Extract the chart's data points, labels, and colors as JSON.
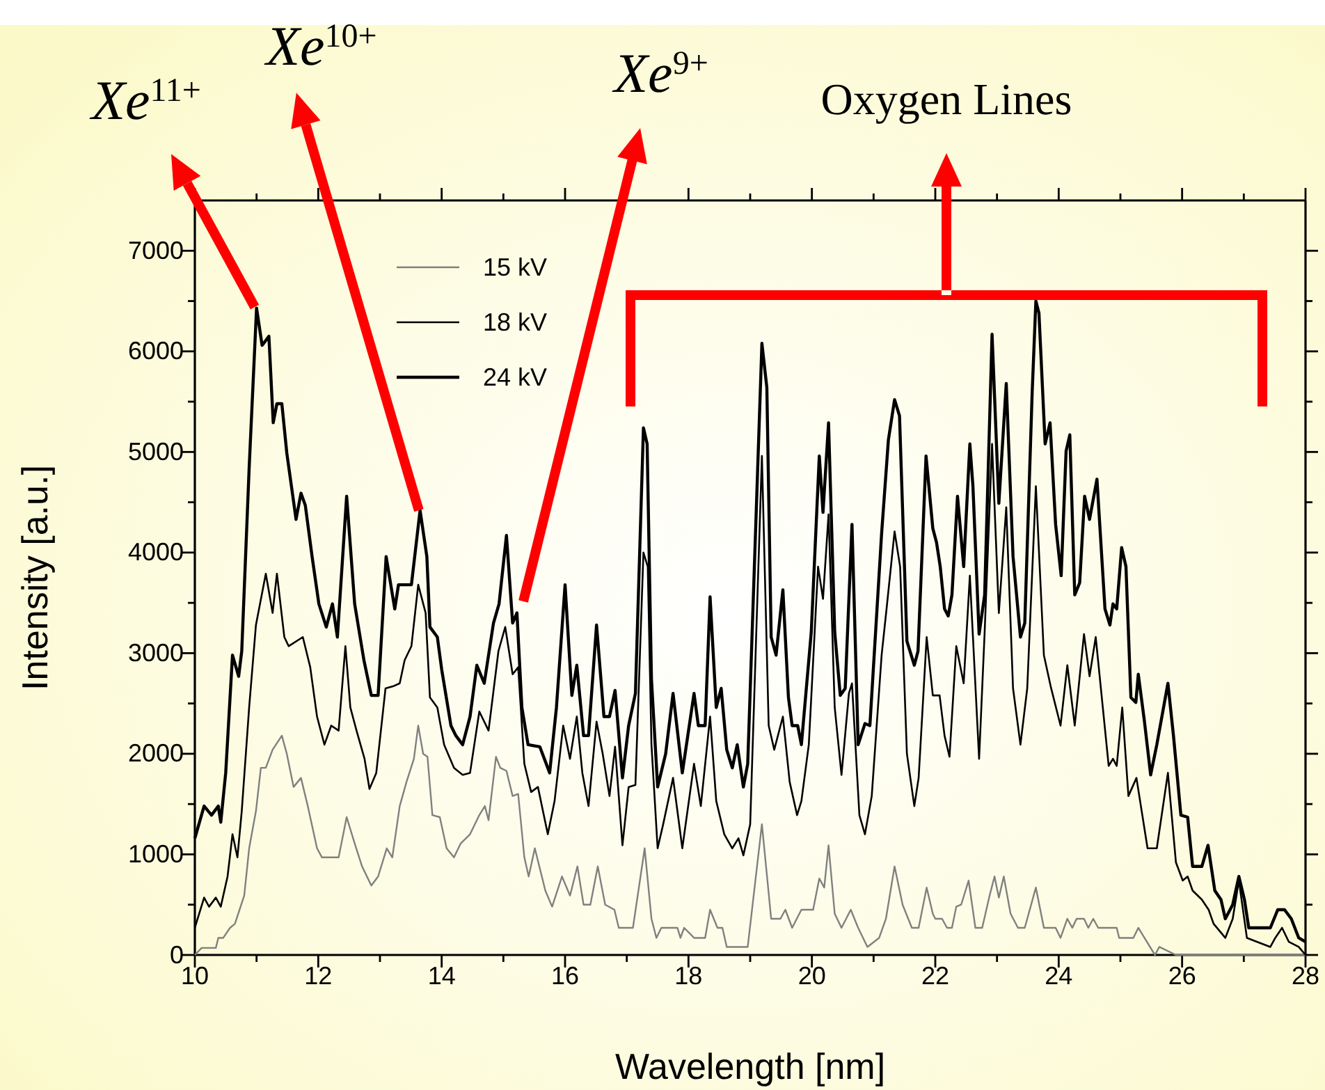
{
  "chart_data": {
    "type": "line",
    "xlabel": "Wavelength [nm]",
    "ylabel": "Intensity [a.u.]",
    "xlim": [
      10,
      28
    ],
    "ylim": [
      0,
      7500
    ],
    "xticks": [
      10,
      {
        "value": 11,
        "label": null
      },
      12,
      {
        "value": 13,
        "label": null
      },
      14,
      {
        "value": 15,
        "label": null
      },
      16,
      {
        "value": 17,
        "label": null
      },
      18,
      {
        "value": 19,
        "label": null
      },
      20,
      {
        "value": 21,
        "label": null
      },
      22,
      {
        "value": 23,
        "label": null
      },
      24,
      {
        "value": 25,
        "label": null
      },
      26,
      {
        "value": 27,
        "label": null
      },
      28
    ],
    "yticks": [
      0,
      {
        "value": 500,
        "label": null
      },
      1000,
      {
        "value": 1500,
        "label": null
      },
      2000,
      {
        "value": 2500,
        "label": null
      },
      3000,
      {
        "value": 3500,
        "label": null
      },
      4000,
      {
        "value": 4500,
        "label": null
      },
      5000,
      {
        "value": 5500,
        "label": null
      },
      6000,
      {
        "value": 6500,
        "label": null
      },
      7000
    ],
    "grid": false,
    "legend": "top left",
    "marker": "none",
    "line_style": "solid",
    "annotations": [
      {
        "text": "Xe$^{11+}$",
        "x": 10.97,
        "y": 6440
      },
      {
        "text": "Xe$^{10+}$",
        "x": 13.63,
        "y": 4420
      },
      "Xe$^{9+}$",
      "Oxygen Lines"
    ],
    "series": [
      {
        "name": "15 kV",
        "color": "#808080",
        "x": [
          10,
          10.11,
          10.34,
          10.38,
          10.46,
          10.57,
          10.65,
          10.8,
          10.88,
          10.99,
          11.07,
          11.15,
          11.26,
          11.41,
          11.49,
          11.6,
          11.72,
          11.83,
          11.98,
          12.06,
          12.33,
          12.46,
          12.59,
          12.71,
          12.86,
          12.97,
          13.11,
          13.2,
          13.32,
          13.43,
          13.55,
          13.62,
          13.7,
          13.77,
          13.85,
          13.97,
          14.08,
          14.2,
          14.31,
          14.46,
          14.61,
          14.7,
          14.76,
          14.88,
          14.95,
          15.05,
          15.15,
          15.24,
          15.34,
          15.41,
          15.51,
          15.68,
          15.79,
          15.95,
          16.08,
          16.2,
          16.3,
          16.41,
          16.53,
          16.65,
          16.8,
          16.87,
          17.1,
          17.29,
          17.4,
          17.48,
          17.56,
          17.82,
          17.87,
          17.93,
          18.09,
          18.27,
          18.35,
          18.47,
          18.55,
          18.62,
          18.96,
          19.19,
          19.34,
          19.49,
          19.57,
          19.68,
          19.83,
          20.02,
          20.12,
          20.2,
          20.27,
          20.37,
          20.48,
          20.63,
          20.75,
          20.9,
          21.09,
          21.2,
          21.34,
          21.47,
          21.62,
          21.73,
          21.86,
          21.96,
          22,
          22.11,
          22.19,
          22.27,
          22.34,
          22.42,
          22.54,
          22.65,
          22.76,
          22.88,
          22.96,
          23.03,
          23.11,
          23.22,
          23.34,
          23.45,
          23.63,
          23.76,
          23.95,
          24.03,
          24.14,
          24.22,
          24.29,
          24.41,
          24.48,
          24.56,
          24.64,
          24.94,
          24.98,
          25.21,
          25.29,
          25.39,
          25.56,
          25.63,
          25.9,
          28
        ],
        "values": [
          0,
          70,
          70,
          170,
          170,
          270,
          310,
          590,
          1060,
          1430,
          1860,
          1860,
          2040,
          2180,
          2000,
          1670,
          1760,
          1480,
          1060,
          970,
          970,
          1370,
          1110,
          880,
          690,
          780,
          1060,
          970,
          1480,
          1720,
          1950,
          2280,
          2000,
          1970,
          1390,
          1370,
          1060,
          970,
          1110,
          1200,
          1390,
          1480,
          1340,
          1970,
          1860,
          1830,
          1580,
          1600,
          970,
          780,
          1060,
          640,
          480,
          780,
          590,
          880,
          500,
          500,
          880,
          500,
          450,
          270,
          270,
          1060,
          360,
          170,
          270,
          270,
          170,
          270,
          170,
          170,
          450,
          270,
          270,
          80,
          80,
          1300,
          360,
          360,
          450,
          270,
          450,
          450,
          760,
          670,
          1090,
          410,
          270,
          450,
          270,
          80,
          170,
          360,
          880,
          500,
          270,
          270,
          670,
          410,
          360,
          360,
          270,
          270,
          480,
          500,
          740,
          270,
          270,
          590,
          780,
          570,
          780,
          410,
          270,
          270,
          670,
          270,
          270,
          170,
          360,
          270,
          360,
          360,
          270,
          360,
          270,
          270,
          170,
          170,
          270,
          170,
          0,
          80,
          0,
          0
        ]
      },
      {
        "name": "18 kV",
        "color": "#000000",
        "x": [
          10,
          10.15,
          10.23,
          10.34,
          10.42,
          10.53,
          10.61,
          10.69,
          10.76,
          10.88,
          10.99,
          11.15,
          11.26,
          11.33,
          11.45,
          11.52,
          11.75,
          11.87,
          11.98,
          12.1,
          12.21,
          12.33,
          12.44,
          12.52,
          12.62,
          12.75,
          12.83,
          12.94,
          13.09,
          13.21,
          13.32,
          13.4,
          13.51,
          13.62,
          13.74,
          13.81,
          13.93,
          14.04,
          14.2,
          14.34,
          14.46,
          14.61,
          14.76,
          14.92,
          15.03,
          15.15,
          15.24,
          15.34,
          15.45,
          15.56,
          15.72,
          15.83,
          15.97,
          16.08,
          16.19,
          16.28,
          16.38,
          16.51,
          16.61,
          16.72,
          16.81,
          16.93,
          17.03,
          17.14,
          17.27,
          17.34,
          17.4,
          17.5,
          17.59,
          17.75,
          17.9,
          18.09,
          18.2,
          18.35,
          18.45,
          18.58,
          18.71,
          18.81,
          18.89,
          19,
          19.19,
          19.3,
          19.39,
          19.53,
          19.64,
          19.76,
          19.83,
          19.95,
          20.1,
          20.18,
          20.27,
          20.37,
          20.48,
          20.6,
          20.65,
          20.77,
          20.86,
          20.97,
          21.13,
          21.21,
          21.34,
          21.43,
          21.54,
          21.66,
          21.73,
          21.86,
          21.96,
          22.07,
          22.15,
          22.23,
          22.34,
          22.46,
          22.56,
          22.71,
          22.8,
          22.92,
          23.03,
          23.15,
          23.26,
          23.38,
          23.49,
          23.63,
          23.76,
          23.87,
          24.03,
          24.14,
          24.26,
          24.41,
          24.5,
          24.6,
          24.81,
          24.88,
          24.94,
          25.03,
          25.13,
          25.26,
          25.44,
          25.59,
          25.77,
          25.9,
          26.01,
          26.09,
          26.17,
          26.32,
          26.43,
          26.51,
          26.7,
          26.82,
          26.92,
          27.05,
          27.43,
          27.51,
          27.62,
          27.73,
          27.89,
          28
        ],
        "values": [
          270,
          570,
          480,
          570,
          480,
          780,
          1200,
          970,
          1430,
          2460,
          3280,
          3790,
          3400,
          3790,
          3160,
          3070,
          3160,
          2860,
          2370,
          2090,
          2280,
          2230,
          3070,
          2460,
          2230,
          1950,
          1650,
          1810,
          2650,
          2670,
          2700,
          2930,
          3070,
          3680,
          3400,
          2560,
          2460,
          2090,
          1860,
          1790,
          1810,
          2420,
          2230,
          3020,
          3260,
          2790,
          2860,
          1900,
          1620,
          1670,
          1200,
          1530,
          2280,
          1950,
          2370,
          1810,
          1480,
          2320,
          2000,
          1580,
          2070,
          1090,
          1670,
          1690,
          4000,
          3860,
          2090,
          1060,
          1300,
          1760,
          1060,
          1900,
          1480,
          2370,
          1530,
          1200,
          1060,
          1160,
          990,
          1300,
          4960,
          2280,
          2040,
          2370,
          1720,
          1390,
          1530,
          2090,
          3860,
          3540,
          4380,
          2460,
          1790,
          2600,
          2700,
          1390,
          1200,
          1580,
          2980,
          3440,
          4210,
          3860,
          2000,
          1480,
          1760,
          3160,
          2580,
          2580,
          2180,
          1970,
          3070,
          2700,
          3770,
          1950,
          3210,
          5080,
          3400,
          4450,
          2650,
          2090,
          2650,
          4660,
          2980,
          2670,
          2280,
          2880,
          2280,
          3190,
          2770,
          3160,
          1880,
          1950,
          1880,
          2460,
          1580,
          1760,
          1060,
          1060,
          1810,
          920,
          740,
          780,
          640,
          550,
          450,
          310,
          170,
          360,
          740,
          170,
          80,
          170,
          270,
          130,
          80,
          0
        ]
      },
      {
        "name": "24 kV",
        "color": "#000000",
        "x": [
          10,
          10.15,
          10.27,
          10.38,
          10.42,
          10.5,
          10.61,
          10.71,
          10.76,
          10.88,
          11,
          11.09,
          11.14,
          11.2,
          11.27,
          11.33,
          11.41,
          11.49,
          11.64,
          11.72,
          11.79,
          11.9,
          12.01,
          12.13,
          12.23,
          12.31,
          12.46,
          12.59,
          12.74,
          12.86,
          12.97,
          13.1,
          13.24,
          13.3,
          13.51,
          13.65,
          13.76,
          13.81,
          13.93,
          14,
          14.15,
          14.23,
          14.34,
          14.46,
          14.57,
          14.69,
          14.84,
          14.93,
          15.05,
          15.15,
          15.22,
          15.3,
          15.4,
          15.59,
          15.75,
          15.86,
          16,
          16.11,
          16.19,
          16.3,
          16.38,
          16.51,
          16.63,
          16.72,
          16.81,
          16.93,
          17.03,
          17.14,
          17.27,
          17.33,
          17.4,
          17.5,
          17.63,
          17.75,
          17.9,
          18.09,
          18.16,
          18.27,
          18.35,
          18.45,
          18.53,
          18.62,
          18.71,
          18.79,
          18.89,
          18.96,
          19.19,
          19.27,
          19.34,
          19.42,
          19.53,
          19.62,
          19.68,
          19.77,
          19.83,
          19.99,
          20.12,
          20.18,
          20.27,
          20.37,
          20.46,
          20.54,
          20.65,
          20.75,
          20.86,
          20.94,
          21.13,
          21.24,
          21.34,
          21.42,
          21.54,
          21.66,
          21.72,
          21.85,
          21.96,
          22.02,
          22.08,
          22.15,
          22.21,
          22.27,
          22.36,
          22.46,
          22.56,
          22.61,
          22.71,
          22.8,
          22.92,
          23.03,
          23.15,
          23.26,
          23.38,
          23.45,
          23.57,
          23.63,
          23.68,
          23.78,
          23.86,
          23.95,
          24.04,
          24.12,
          24.18,
          24.26,
          24.34,
          24.42,
          24.5,
          24.62,
          24.75,
          24.83,
          24.88,
          24.94,
          25.02,
          25.09,
          25.17,
          25.25,
          25.29,
          25.39,
          25.49,
          25.59,
          25.77,
          25.86,
          25.98,
          26.09,
          26.17,
          26.32,
          26.42,
          26.53,
          26.63,
          26.7,
          26.82,
          26.92,
          27.01,
          27.08,
          27.43,
          27.55,
          27.66,
          27.77,
          27.89,
          28
        ],
        "values": [
          1160,
          1480,
          1390,
          1480,
          1320,
          1810,
          2980,
          2770,
          3020,
          4840,
          6430,
          6060,
          6100,
          6150,
          5290,
          5480,
          5480,
          4990,
          4330,
          4590,
          4470,
          3960,
          3490,
          3260,
          3490,
          3160,
          4560,
          3490,
          2930,
          2580,
          2580,
          3960,
          3440,
          3680,
          3680,
          4420,
          3960,
          3260,
          3160,
          2840,
          2280,
          2180,
          2090,
          2370,
          2880,
          2700,
          3300,
          3490,
          4170,
          3300,
          3400,
          2460,
          2090,
          2070,
          1810,
          2460,
          3680,
          2580,
          2880,
          2180,
          2180,
          3280,
          2370,
          2370,
          2630,
          1760,
          2280,
          2600,
          5240,
          5080,
          2740,
          1670,
          2000,
          2600,
          1810,
          2600,
          2280,
          2280,
          3560,
          2460,
          2650,
          2040,
          1860,
          2090,
          1670,
          1900,
          6080,
          5640,
          3160,
          2980,
          3630,
          2560,
          2280,
          2280,
          2090,
          3210,
          4960,
          4400,
          5290,
          3210,
          2580,
          2650,
          4280,
          2090,
          2300,
          2280,
          4190,
          5120,
          5520,
          5360,
          3120,
          2880,
          3020,
          4960,
          4240,
          4100,
          3860,
          3440,
          3370,
          3580,
          4560,
          3860,
          5080,
          4660,
          3190,
          3580,
          6170,
          4490,
          5680,
          3960,
          3160,
          3300,
          5590,
          6500,
          6380,
          5080,
          5290,
          4280,
          3770,
          5010,
          5170,
          3580,
          3700,
          4560,
          4330,
          4730,
          3440,
          3280,
          3490,
          3440,
          4050,
          3860,
          2560,
          2510,
          2790,
          2320,
          1790,
          2090,
          2700,
          2180,
          1390,
          1370,
          880,
          880,
          1090,
          640,
          550,
          360,
          500,
          780,
          550,
          270,
          270,
          450,
          450,
          360,
          170,
          130
        ]
      }
    ]
  }
}
